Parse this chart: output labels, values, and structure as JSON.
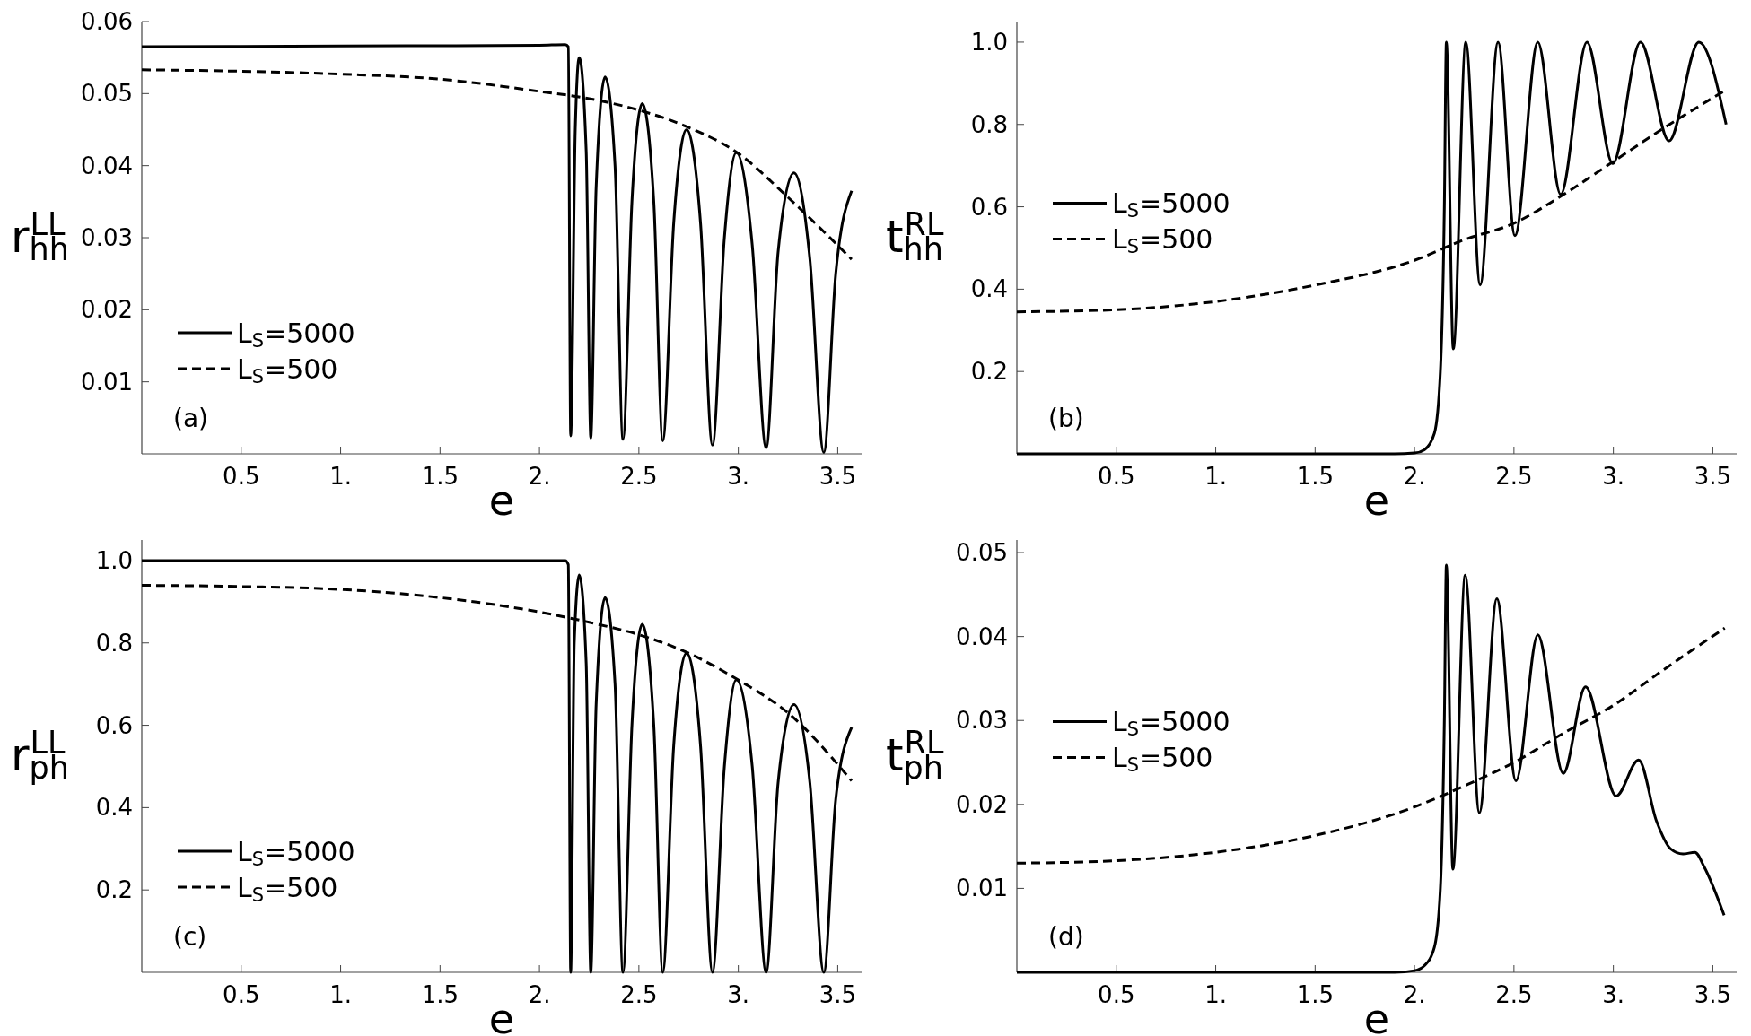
{
  "chart_data": [
    {
      "type": "line",
      "xlabel": "e",
      "ylabel": "r$_{hh}$$^{LL}$",
      "xlim": [
        0,
        3.62
      ],
      "ylim": [
        0,
        0.06
      ],
      "xticks": [
        0.5,
        {
          "value": 1,
          "label": "1."
        },
        1.5,
        {
          "value": 2,
          "label": "2."
        },
        2.5,
        {
          "value": 3,
          "label": "3."
        },
        3.5
      ],
      "yticks": [
        0.01,
        0.02,
        0.03,
        0.04,
        0.05,
        0.06
      ],
      "legend": "bottom left",
      "annotations": [
        "(a)"
      ],
      "series": [
        {
          "name": "L$_{S}$=5000",
          "color": "#000000",
          "line_style": "solid",
          "x": [
            0,
            1,
            2,
            2.13,
            2.145,
            2.157,
            2.18,
            2.2,
            2.235,
            2.258,
            2.285,
            2.33,
            2.38,
            2.42,
            2.465,
            2.517,
            2.575,
            2.62,
            2.675,
            2.74,
            2.81,
            2.87,
            2.93,
            2.99,
            3.07,
            3.14,
            3.2,
            3.28,
            3.36,
            3.43,
            3.49,
            3.57
          ],
          "values": [
            0.0565,
            0.0566,
            0.0567,
            0.0568,
            0.0565,
            0.0025,
            0.045,
            0.055,
            0.042,
            0.0022,
            0.037,
            0.0523,
            0.04,
            0.002,
            0.035,
            0.0486,
            0.035,
            0.0018,
            0.032,
            0.045,
            0.032,
            0.0012,
            0.03,
            0.0418,
            0.029,
            0.0008,
            0.028,
            0.039,
            0.027,
            0.0002,
            0.025,
            0.0365
          ]
        },
        {
          "name": "L$_{S}$=500",
          "color": "#000000",
          "line_style": "dashed",
          "x": [
            0,
            0.5,
            1,
            1.5,
            2,
            2.25,
            2.5,
            2.75,
            3,
            3.25,
            3.57
          ],
          "values": [
            0.0533,
            0.0531,
            0.0527,
            0.052,
            0.0503,
            0.0493,
            0.0477,
            0.0453,
            0.0417,
            0.0356,
            0.027
          ]
        }
      ]
    },
    {
      "type": "line",
      "xlabel": "e",
      "ylabel": "t$_{hh}$$^{RL}$",
      "xlim": [
        0,
        3.62
      ],
      "ylim": [
        0,
        1.05
      ],
      "xticks": [
        0.5,
        {
          "value": 1,
          "label": "1."
        },
        1.5,
        {
          "value": 2,
          "label": "2."
        },
        2.5,
        {
          "value": 3,
          "label": "3."
        },
        3.5
      ],
      "yticks": [
        0.2,
        0.4,
        0.6,
        0.8,
        {
          "value": 1,
          "label": "1.0"
        }
      ],
      "legend": "left",
      "annotations": [
        "(b)"
      ],
      "series": [
        {
          "name": "L$_{S}$=5000",
          "color": "#000000",
          "line_style": "solid",
          "x": [
            0,
            1.9,
            2,
            2.05,
            2.1,
            2.13,
            2.15,
            2.16,
            2.195,
            2.258,
            2.33,
            2.42,
            2.505,
            2.62,
            2.735,
            2.867,
            2.997,
            3.136,
            3.28,
            3.43,
            3.567
          ],
          "values": [
            0,
            0,
            0.002,
            0.01,
            0.05,
            0.2,
            0.6,
            1,
            0.255,
            1,
            0.41,
            1,
            0.53,
            1,
            0.63,
            1,
            0.705,
            1,
            0.76,
            1,
            0.8
          ]
        },
        {
          "name": "L$_{S}$=500",
          "color": "#000000",
          "line_style": "dashed",
          "x": [
            0,
            0.5,
            1,
            1.5,
            2,
            2.25,
            2.5,
            2.75,
            3,
            3.25,
            3.57
          ],
          "values": [
            0.345,
            0.35,
            0.37,
            0.41,
            0.47,
            0.52,
            0.56,
            0.63,
            0.71,
            0.79,
            0.885
          ]
        }
      ]
    },
    {
      "type": "line",
      "xlabel": "e",
      "ylabel": "r$_{ph}$$^{LL}$",
      "xlim": [
        0,
        3.62
      ],
      "ylim": [
        0,
        1.05
      ],
      "xticks": [
        0.5,
        {
          "value": 1,
          "label": "1."
        },
        1.5,
        {
          "value": 2,
          "label": "2."
        },
        2.5,
        {
          "value": 3,
          "label": "3."
        },
        3.5
      ],
      "yticks": [
        0.2,
        0.4,
        0.6,
        0.8,
        {
          "value": 1,
          "label": "1.0"
        }
      ],
      "legend": "bottom left",
      "annotations": [
        "(c)"
      ],
      "series": [
        {
          "name": "L$_{S}$=5000",
          "color": "#000000",
          "line_style": "solid",
          "x": [
            0,
            1,
            2,
            2.13,
            2.145,
            2.157,
            2.175,
            2.2,
            2.235,
            2.258,
            2.285,
            2.33,
            2.38,
            2.42,
            2.465,
            2.517,
            2.575,
            2.62,
            2.675,
            2.74,
            2.81,
            2.87,
            2.93,
            2.99,
            3.07,
            3.14,
            3.2,
            3.28,
            3.36,
            3.43,
            3.49,
            3.57
          ],
          "values": [
            1,
            1,
            1,
            1,
            0.99,
            0,
            0.8,
            0.965,
            0.75,
            0,
            0.65,
            0.91,
            0.7,
            0,
            0.6,
            0.845,
            0.6,
            0,
            0.55,
            0.775,
            0.55,
            0,
            0.5,
            0.71,
            0.5,
            0,
            0.46,
            0.65,
            0.46,
            0,
            0.42,
            0.595
          ]
        },
        {
          "name": "L$_{S}$=500",
          "color": "#000000",
          "line_style": "dashed",
          "x": [
            0,
            0.5,
            1,
            1.5,
            2,
            2.25,
            2.5,
            2.75,
            3,
            3.25,
            3.57
          ],
          "values": [
            0.94,
            0.937,
            0.93,
            0.91,
            0.875,
            0.85,
            0.82,
            0.775,
            0.71,
            0.63,
            0.465
          ]
        }
      ]
    },
    {
      "type": "line",
      "xlabel": "e",
      "ylabel": "t$_{ph}$$^{RL}$",
      "xlim": [
        0,
        3.62
      ],
      "ylim": [
        0,
        0.0515
      ],
      "xticks": [
        0.5,
        {
          "value": 1,
          "label": "1."
        },
        1.5,
        {
          "value": 2,
          "label": "2."
        },
        2.5,
        {
          "value": 3,
          "label": "3."
        },
        3.5
      ],
      "yticks": [
        0.01,
        0.02,
        0.03,
        0.04,
        0.05
      ],
      "legend": "left",
      "annotations": [
        "(d)"
      ],
      "series": [
        {
          "name": "L$_{S}$=5000",
          "color": "#000000",
          "line_style": "solid",
          "x": [
            0,
            1.9,
            2,
            2.05,
            2.1,
            2.13,
            2.15,
            2.16,
            2.193,
            2.255,
            2.326,
            2.414,
            2.51,
            2.62,
            2.748,
            2.86,
            3.014,
            3.127,
            3.217,
            3.288,
            3.35,
            3.41,
            3.458,
            3.557
          ],
          "values": [
            0,
            0,
            0.0002,
            0.0008,
            0.003,
            0.01,
            0.03,
            0.0485,
            0.0123,
            0.0473,
            0.019,
            0.0445,
            0.0228,
            0.0402,
            0.0237,
            0.034,
            0.021,
            0.0253,
            0.018,
            0.0147,
            0.0141,
            0.0143,
            0.0125,
            0.0068
          ]
        },
        {
          "name": "L$_{S}$=500",
          "color": "#000000",
          "line_style": "dashed",
          "x": [
            0,
            0.5,
            1,
            1.5,
            2,
            2.25,
            2.5,
            2.75,
            3,
            3.25,
            3.56
          ],
          "values": [
            0.013,
            0.0133,
            0.0143,
            0.0163,
            0.0197,
            0.0222,
            0.025,
            0.0285,
            0.0318,
            0.036,
            0.041
          ]
        }
      ]
    }
  ]
}
